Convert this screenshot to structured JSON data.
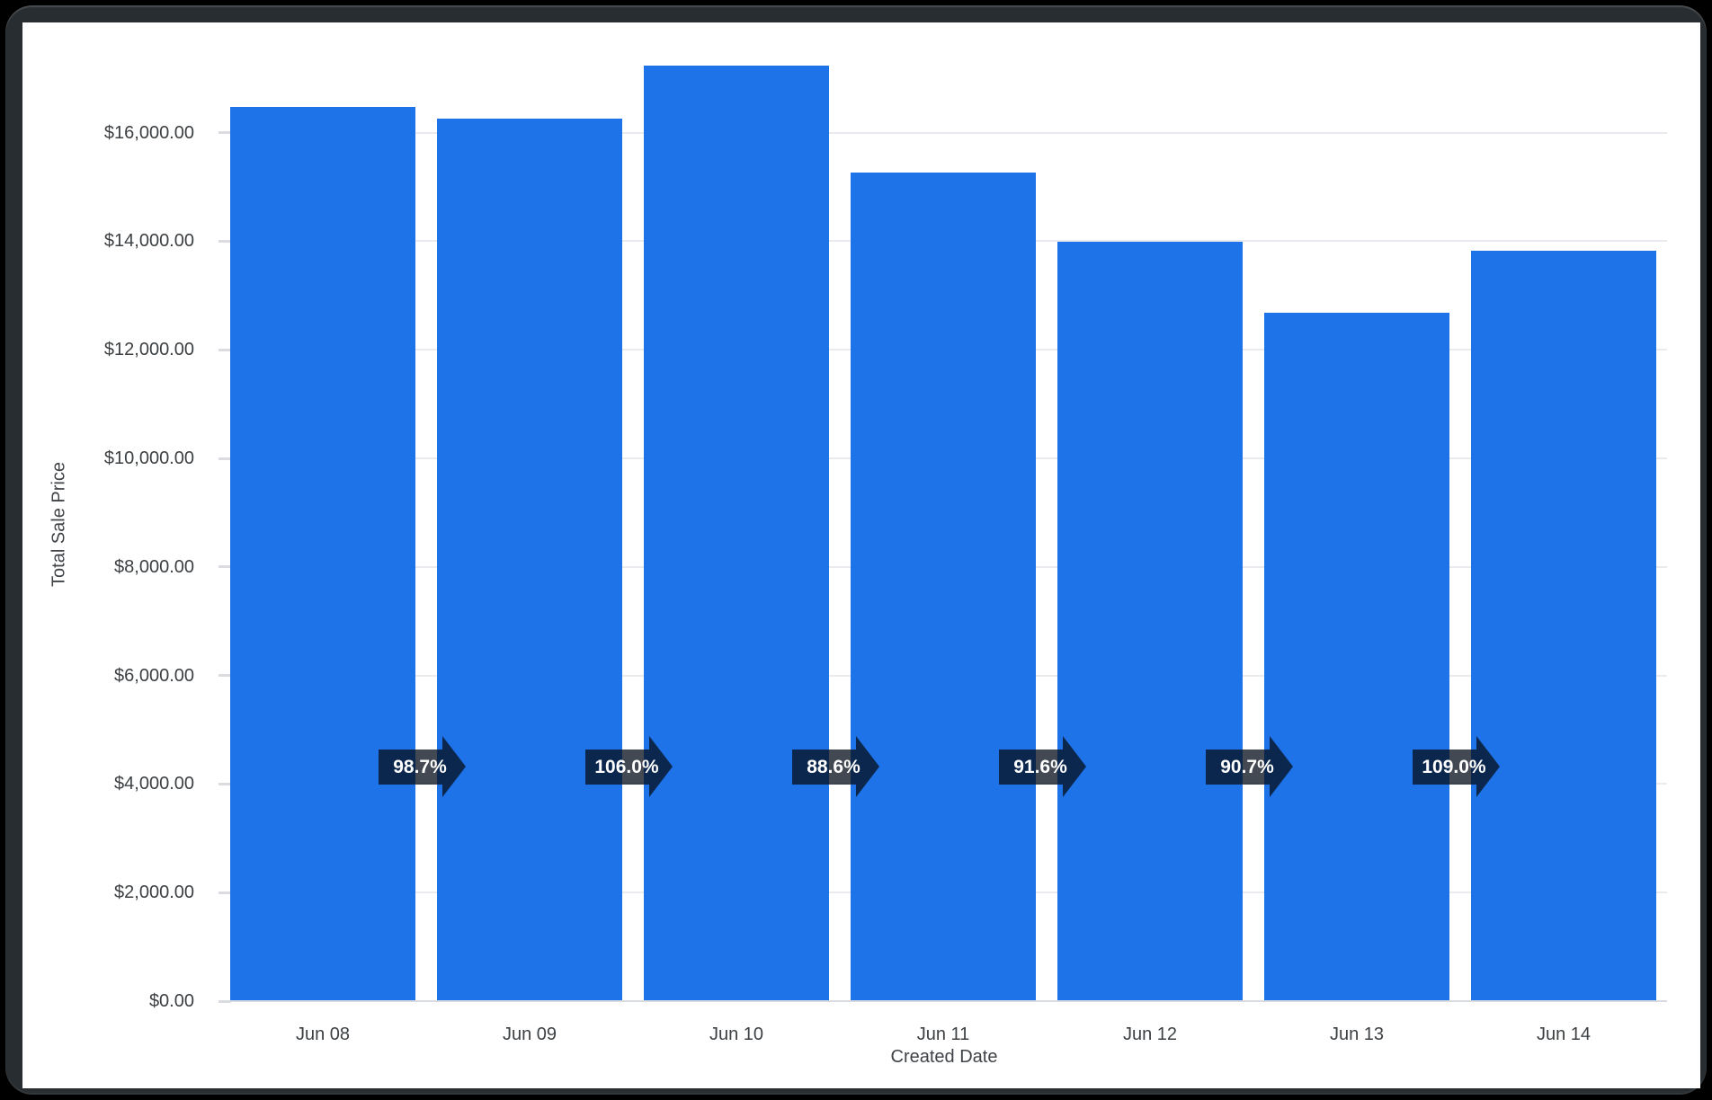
{
  "frame": {
    "background": "#000000",
    "border_color": "#282d31",
    "chart_background": "#ffffff"
  },
  "chart_data": {
    "type": "bar",
    "title": "",
    "xlabel": "Created Date",
    "ylabel": "Total Sale Price",
    "categories": [
      "Jun 08",
      "Jun 09",
      "Jun 10",
      "Jun 11",
      "Jun 12",
      "Jun 13",
      "Jun 14"
    ],
    "series": [
      {
        "name": "Total Sale Price",
        "values": [
          16470,
          16260,
          17230,
          15270,
          13990,
          12680,
          13830
        ]
      }
    ],
    "percent_change_labels": [
      "98.7%",
      "106.0%",
      "88.6%",
      "91.6%",
      "90.7%",
      "109.0%"
    ],
    "y_axis": {
      "ticks": [
        {
          "value": 0,
          "label": "$0.00"
        },
        {
          "value": 2000,
          "label": "$2,000.00"
        },
        {
          "value": 4000,
          "label": "$4,000.00"
        },
        {
          "value": 6000,
          "label": "$6,000.00"
        },
        {
          "value": 8000,
          "label": "$8,000.00"
        },
        {
          "value": 10000,
          "label": "$10,000.00"
        },
        {
          "value": 12000,
          "label": "$12,000.00"
        },
        {
          "value": 14000,
          "label": "$14,000.00"
        },
        {
          "value": 16000,
          "label": "$16,000.00"
        }
      ]
    },
    "ylim": [
      0,
      17900
    ],
    "grid": true,
    "legend": false,
    "bar_color": "#1e73e8",
    "gridline_color": "#e9ebee",
    "axis_line_color": "#d8dce2",
    "axis_text_color": "#3c4043",
    "annotation_fill": "rgba(7,16,28,0.76)",
    "annotation_text_color": "#ffffff"
  }
}
